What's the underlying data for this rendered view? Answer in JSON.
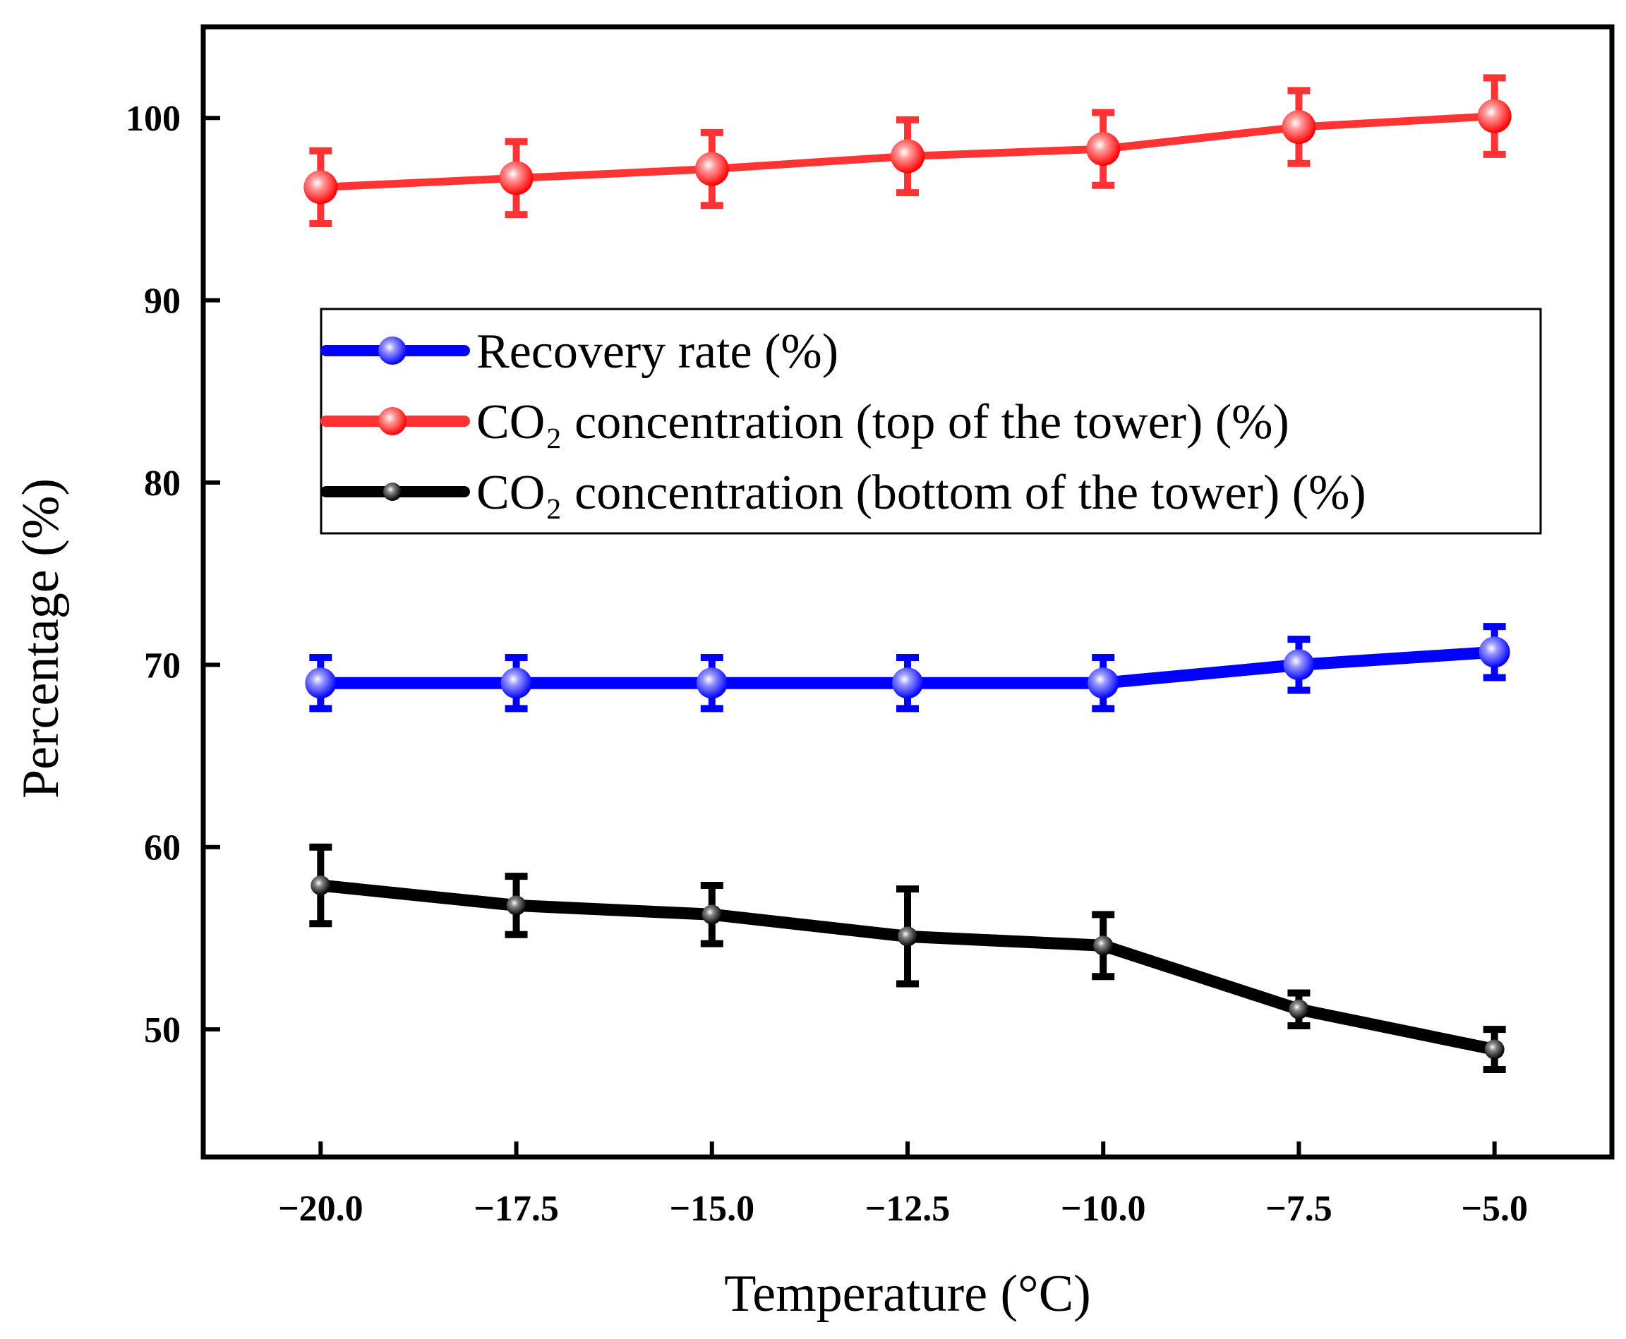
{
  "chart_data": {
    "type": "line",
    "title": "",
    "xlabel": "Temperature (°C)",
    "ylabel": "Percentage (%)",
    "x": [
      -20.0,
      -17.5,
      -15.0,
      -12.5,
      -10.0,
      -7.5,
      -5.0
    ],
    "xticks": [
      "−20.0",
      "−17.5",
      "−15.0",
      "−12.5",
      "−10.0",
      "−7.5",
      "−5.0"
    ],
    "yticks": [
      "50",
      "60",
      "70",
      "80",
      "90",
      "100"
    ],
    "ytick_values": [
      50,
      60,
      70,
      80,
      90,
      100
    ],
    "xlim": [
      -21.5,
      -3.5
    ],
    "ylim": [
      43,
      105
    ],
    "legend_position": "center-right",
    "series": [
      {
        "name": "Recovery rate (%)",
        "label": "Recovery rate (%)",
        "color": "#0000ff",
        "values": [
          69.0,
          69.0,
          69.0,
          69.0,
          69.0,
          70.0,
          70.7
        ],
        "errors": [
          1.4,
          1.4,
          1.4,
          1.4,
          1.4,
          1.4,
          1.4
        ]
      },
      {
        "name": "CO₂ concentration (top of the tower) (%)",
        "label": "CO₂ concentration (top of the tower) (%)",
        "color": "#ff3333",
        "values": [
          96.2,
          96.7,
          97.2,
          97.9,
          98.3,
          99.5,
          100.1
        ],
        "errors": [
          2.0,
          2.0,
          2.0,
          2.0,
          2.0,
          2.0,
          2.1
        ]
      },
      {
        "name": "CO₂ concentration (bottom of the tower) (%)",
        "label": "CO₂ concentration (bottom of the tower) (%)",
        "color": "#000000",
        "values": [
          57.9,
          56.8,
          56.3,
          55.1,
          54.6,
          51.1,
          48.9
        ],
        "errors": [
          2.1,
          1.6,
          1.6,
          2.6,
          1.7,
          0.9,
          1.1
        ]
      }
    ]
  }
}
